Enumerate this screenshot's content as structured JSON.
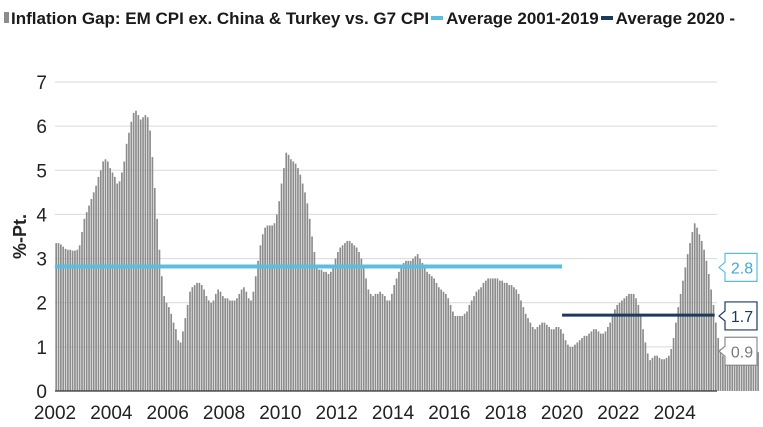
{
  "legend": [
    {
      "label": "Inflation Gap: EM CPI ex. China & Turkey vs. G7 CPI",
      "kind": "bar",
      "color": "#8c8c8c"
    },
    {
      "label": "Average 2001-2019",
      "kind": "line",
      "color": "#5bbde4"
    },
    {
      "label": "Average 2020 -",
      "kind": "line",
      "color": "#1b3a5c"
    }
  ],
  "chart_data": {
    "type": "bar",
    "ylabel": "%-Pt.",
    "xlabel": "",
    "ylim": [
      0,
      7
    ],
    "y_ticks": [
      0,
      1,
      2,
      3,
      4,
      5,
      6,
      7
    ],
    "x_range": [
      2002.0,
      2025.5
    ],
    "x_ticks": [
      "2002",
      "2004",
      "2006",
      "2008",
      "2010",
      "2012",
      "2014",
      "2016",
      "2018",
      "2020",
      "2022",
      "2024"
    ],
    "grid": "horizontal",
    "series": [
      {
        "name": "Inflation Gap: EM CPI ex. China & Turkey vs. G7 CPI",
        "kind": "monthly-bars",
        "start": "2002-01",
        "color": "#8c8c8c",
        "values": [
          3.35,
          3.35,
          3.32,
          3.27,
          3.22,
          3.2,
          3.2,
          3.18,
          3.18,
          3.2,
          3.3,
          3.6,
          3.9,
          4.05,
          4.2,
          4.35,
          4.5,
          4.65,
          4.85,
          5.0,
          5.2,
          5.25,
          5.2,
          5.05,
          4.95,
          4.85,
          4.7,
          4.75,
          4.95,
          5.2,
          5.6,
          5.85,
          6.1,
          6.3,
          6.35,
          6.25,
          6.15,
          6.2,
          6.25,
          6.2,
          5.9,
          5.3,
          4.6,
          3.9,
          3.2,
          2.6,
          2.15,
          2.0,
          1.9,
          1.75,
          1.55,
          1.4,
          1.15,
          1.1,
          1.35,
          1.65,
          1.95,
          2.25,
          2.35,
          2.4,
          2.45,
          2.45,
          2.4,
          2.3,
          2.15,
          2.05,
          2.0,
          2.05,
          2.2,
          2.3,
          2.25,
          2.15,
          2.1,
          2.1,
          2.05,
          2.05,
          2.05,
          2.1,
          2.2,
          2.3,
          2.35,
          2.25,
          2.1,
          2.05,
          2.25,
          2.6,
          2.95,
          3.3,
          3.55,
          3.7,
          3.75,
          3.75,
          3.75,
          3.8,
          4.0,
          4.3,
          4.7,
          5.05,
          5.4,
          5.35,
          5.25,
          5.2,
          5.15,
          5.05,
          4.9,
          4.7,
          4.5,
          4.25,
          3.9,
          3.5,
          3.15,
          2.85,
          2.75,
          2.75,
          2.7,
          2.7,
          2.65,
          2.7,
          2.85,
          3.0,
          3.15,
          3.25,
          3.3,
          3.35,
          3.4,
          3.4,
          3.35,
          3.3,
          3.25,
          3.15,
          3.0,
          2.8,
          2.55,
          2.3,
          2.2,
          2.15,
          2.2,
          2.2,
          2.25,
          2.2,
          2.15,
          2.05,
          2.05,
          2.2,
          2.4,
          2.55,
          2.7,
          2.85,
          2.9,
          2.95,
          2.95,
          2.95,
          3.0,
          3.05,
          3.1,
          3.0,
          2.9,
          2.8,
          2.7,
          2.65,
          2.6,
          2.55,
          2.45,
          2.35,
          2.3,
          2.25,
          2.2,
          2.1,
          1.95,
          1.8,
          1.7,
          1.7,
          1.7,
          1.7,
          1.75,
          1.8,
          1.95,
          2.05,
          2.15,
          2.25,
          2.3,
          2.35,
          2.45,
          2.5,
          2.55,
          2.55,
          2.55,
          2.55,
          2.55,
          2.5,
          2.5,
          2.45,
          2.45,
          2.4,
          2.4,
          2.35,
          2.3,
          2.2,
          2.05,
          1.9,
          1.75,
          1.65,
          1.55,
          1.45,
          1.4,
          1.45,
          1.5,
          1.55,
          1.55,
          1.5,
          1.45,
          1.4,
          1.4,
          1.45,
          1.45,
          1.4,
          1.3,
          1.15,
          1.05,
          1.0,
          1.0,
          1.05,
          1.1,
          1.15,
          1.2,
          1.25,
          1.25,
          1.3,
          1.35,
          1.4,
          1.4,
          1.35,
          1.3,
          1.3,
          1.35,
          1.45,
          1.55,
          1.7,
          1.85,
          1.95,
          2.0,
          2.05,
          2.1,
          2.15,
          2.2,
          2.2,
          2.2,
          2.1,
          1.95,
          1.7,
          1.4,
          1.1,
          0.85,
          0.7,
          0.75,
          0.8,
          0.8,
          0.75,
          0.72,
          0.72,
          0.75,
          0.8,
          0.95,
          1.2,
          1.55,
          1.9,
          2.2,
          2.5,
          2.8,
          3.1,
          3.35,
          3.6,
          3.8,
          3.7,
          3.55,
          3.4,
          3.2,
          2.95,
          2.65,
          2.3,
          1.95,
          1.55,
          1.2,
          0.95,
          0.8,
          0.75,
          0.72,
          0.8,
          0.95,
          1.05,
          1.15,
          1.2,
          1.15,
          1.05,
          0.9,
          0.8,
          0.75,
          0.78,
          0.82,
          0.88
        ]
      },
      {
        "name": "Average 2001-2019",
        "kind": "hline",
        "value": 2.82,
        "from": "2002-01",
        "to": "2019-12",
        "color": "#5bbde4"
      },
      {
        "name": "Average 2020 -",
        "kind": "hline",
        "value": 1.72,
        "from": "2020-01",
        "to": "2025-05",
        "color": "#1b3a5c"
      }
    ],
    "annotations": [
      {
        "label": "2.8",
        "value": 2.8,
        "color": "#5bbde4",
        "text_color": "#3fa9d9"
      },
      {
        "label": "1.7",
        "value": 1.7,
        "color": "#1b3a5c",
        "text_color": "#1b3a5c"
      },
      {
        "label": "0.9",
        "value": 0.9,
        "color": "#8c8c8c",
        "text_color": "#7a7a7a"
      }
    ]
  }
}
